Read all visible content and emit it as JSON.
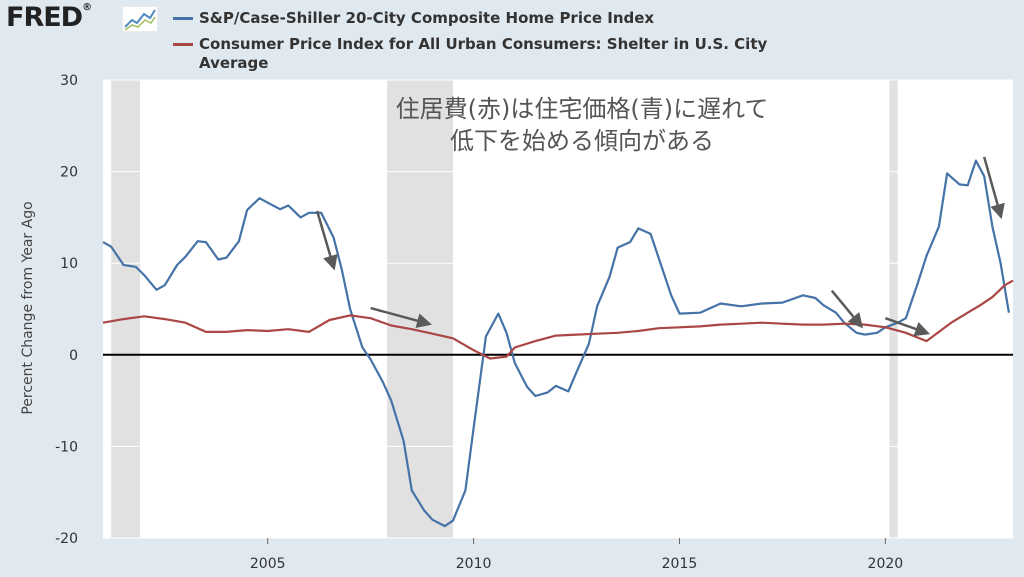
{
  "brand": {
    "logo_text": "FRED",
    "logo_mark": "®"
  },
  "colors": {
    "series1": "#4572a7",
    "series2": "#aa4643",
    "recession": "#e1e1e1",
    "zero_line": "#000000",
    "arrow": "#5a5a5a",
    "annotation": "#555555"
  },
  "chart_data": {
    "type": "line",
    "ylabel": "Percent Change from Year Ago",
    "xlabel": "",
    "ylim": [
      -20,
      30
    ],
    "yticks": [
      30,
      20,
      10,
      0,
      -10,
      -20
    ],
    "xlim": [
      2001.0,
      2023.1
    ],
    "xticks": [
      2005,
      2010,
      2015,
      2020
    ],
    "grid": "horizontal",
    "legend_position": "top",
    "series": [
      {
        "name": "S&P/Case-Shiller 20-City Composite Home Price Index",
        "x": [
          2001.0,
          2001.2,
          2001.5,
          2001.8,
          2002.0,
          2002.3,
          2002.5,
          2002.8,
          2003.0,
          2003.3,
          2003.5,
          2003.8,
          2004.0,
          2004.3,
          2004.5,
          2004.8,
          2005.0,
          2005.3,
          2005.5,
          2005.8,
          2006.0,
          2006.3,
          2006.6,
          2006.8,
          2007.0,
          2007.3,
          2007.5,
          2007.8,
          2008.0,
          2008.3,
          2008.5,
          2008.8,
          2009.0,
          2009.3,
          2009.5,
          2009.8,
          2010.0,
          2010.3,
          2010.6,
          2010.8,
          2011.0,
          2011.3,
          2011.5,
          2011.8,
          2012.0,
          2012.3,
          2012.5,
          2012.8,
          2013.0,
          2013.3,
          2013.5,
          2013.8,
          2014.0,
          2014.3,
          2014.5,
          2014.8,
          2015.0,
          2015.5,
          2016.0,
          2016.5,
          2017.0,
          2017.5,
          2018.0,
          2018.3,
          2018.5,
          2018.8,
          2019.0,
          2019.3,
          2019.5,
          2019.8,
          2020.0,
          2020.3,
          2020.5,
          2020.8,
          2021.0,
          2021.3,
          2021.5,
          2021.8,
          2022.0,
          2022.2,
          2022.4,
          2022.6,
          2022.8,
          2023.0
        ],
        "values": [
          12.3,
          11.8,
          9.8,
          9.6,
          8.7,
          7.1,
          7.6,
          9.8,
          10.7,
          12.4,
          12.3,
          10.4,
          10.6,
          12.4,
          15.8,
          17.1,
          16.6,
          15.9,
          16.3,
          15.0,
          15.5,
          15.5,
          12.8,
          9.3,
          5.0,
          0.8,
          -0.5,
          -3.0,
          -5.0,
          -9.4,
          -14.8,
          -17.0,
          -18.0,
          -18.7,
          -18.1,
          -14.8,
          -8.0,
          2.0,
          4.5,
          2.4,
          -0.9,
          -3.5,
          -4.5,
          -4.1,
          -3.4,
          -4.0,
          -1.9,
          1.2,
          5.3,
          8.5,
          11.7,
          12.3,
          13.8,
          13.2,
          10.5,
          6.5,
          4.5,
          4.6,
          5.6,
          5.3,
          5.6,
          5.7,
          6.5,
          6.2,
          5.4,
          4.6,
          3.5,
          2.4,
          2.2,
          2.4,
          3.0,
          3.5,
          4.0,
          8.0,
          10.8,
          14.0,
          19.8,
          18.6,
          18.5,
          21.2,
          19.5,
          14.0,
          10.0,
          4.6
        ]
      },
      {
        "name": "Consumer Price Index for All Urban Consumers: Shelter in U.S. City Average",
        "x": [
          2001.0,
          2001.5,
          2002.0,
          2002.5,
          2003.0,
          2003.5,
          2004.0,
          2004.5,
          2005.0,
          2005.5,
          2006.0,
          2006.5,
          2007.0,
          2007.5,
          2008.0,
          2008.5,
          2009.0,
          2009.5,
          2010.0,
          2010.4,
          2010.8,
          2011.0,
          2011.5,
          2012.0,
          2012.5,
          2013.0,
          2013.5,
          2014.0,
          2014.5,
          2015.0,
          2015.5,
          2016.0,
          2016.5,
          2017.0,
          2017.5,
          2018.0,
          2018.5,
          2019.0,
          2019.5,
          2020.0,
          2020.5,
          2021.0,
          2021.3,
          2021.6,
          2022.0,
          2022.3,
          2022.6,
          2022.9,
          2023.1
        ],
        "values": [
          3.5,
          3.9,
          4.2,
          3.9,
          3.5,
          2.5,
          2.5,
          2.7,
          2.6,
          2.8,
          2.5,
          3.8,
          4.3,
          4.0,
          3.2,
          2.8,
          2.3,
          1.8,
          0.5,
          -0.4,
          -0.2,
          0.8,
          1.5,
          2.1,
          2.2,
          2.3,
          2.4,
          2.6,
          2.9,
          3.0,
          3.1,
          3.3,
          3.4,
          3.5,
          3.4,
          3.3,
          3.3,
          3.4,
          3.3,
          3.0,
          2.4,
          1.5,
          2.5,
          3.5,
          4.6,
          5.4,
          6.3,
          7.6,
          8.1
        ]
      }
    ],
    "recessions": [
      [
        2001.2,
        2001.9
      ],
      [
        2007.9,
        2009.5
      ],
      [
        2020.1,
        2020.3
      ]
    ],
    "annotation": {
      "lines": [
        "住居費(赤)は住宅価格(青)に遅れて",
        "低下を始める傾向がある"
      ]
    },
    "arrows": [
      {
        "from": [
          2006.2,
          15.7
        ],
        "to": [
          2006.6,
          9.6
        ]
      },
      {
        "from": [
          2007.5,
          5.1
        ],
        "to": [
          2008.9,
          3.4
        ]
      },
      {
        "from": [
          2018.7,
          7.0
        ],
        "to": [
          2019.4,
          3.2
        ]
      },
      {
        "from": [
          2020.0,
          4.0
        ],
        "to": [
          2021.0,
          2.4
        ]
      },
      {
        "from": [
          2022.4,
          21.6
        ],
        "to": [
          2022.8,
          15.2
        ]
      }
    ]
  }
}
